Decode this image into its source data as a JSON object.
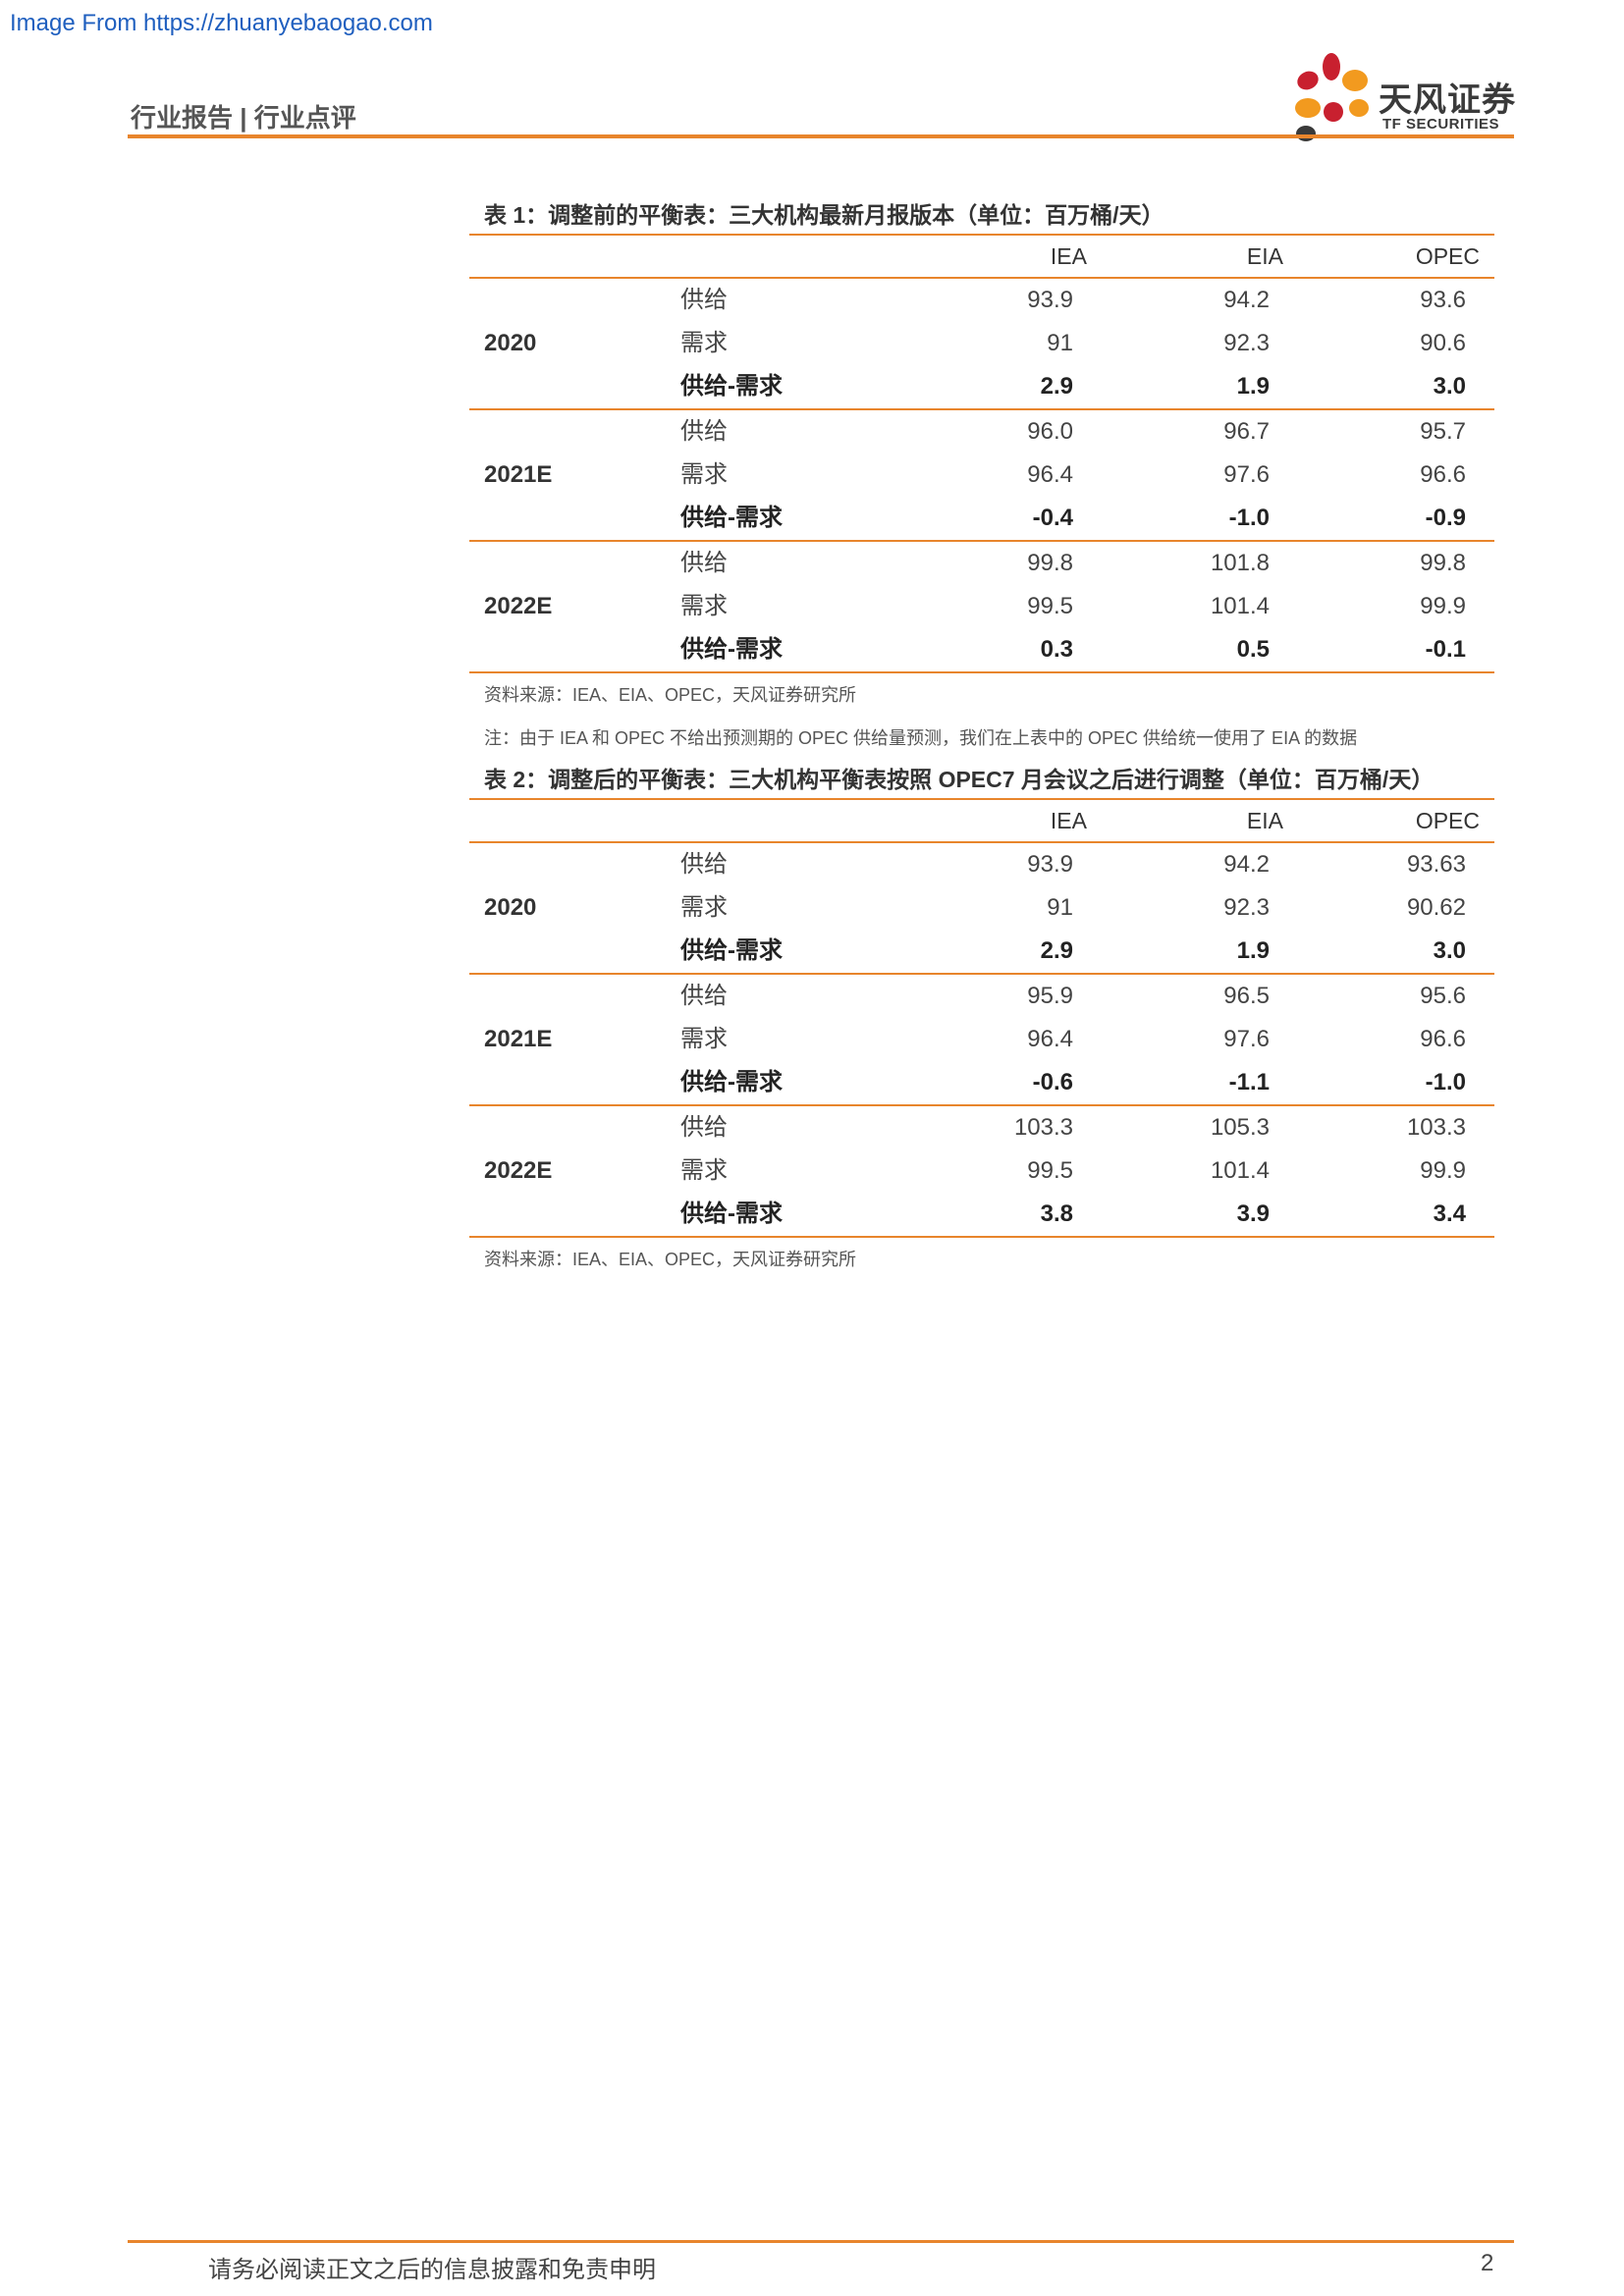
{
  "watermark": "Image From https://zhuanyebaogao.com",
  "header": {
    "title": "行业报告 | 行业点评",
    "logo_cn": "天风证券",
    "logo_en": "TF SECURITIES"
  },
  "table1": {
    "title": "表 1：调整前的平衡表：三大机构最新月报版本（单位：百万桶/天）",
    "columns": [
      "IEA",
      "EIA",
      "OPEC"
    ],
    "groups": [
      {
        "year": "2020",
        "rows": [
          {
            "label": "供给",
            "values": [
              "93.9",
              "94.2",
              "93.6"
            ]
          },
          {
            "label": "需求",
            "values": [
              "91",
              "92.3",
              "90.6"
            ]
          },
          {
            "label": "供给-需求",
            "values": [
              "2.9",
              "1.9",
              "3.0"
            ]
          }
        ]
      },
      {
        "year": "2021E",
        "rows": [
          {
            "label": "供给",
            "values": [
              "96.0",
              "96.7",
              "95.7"
            ]
          },
          {
            "label": "需求",
            "values": [
              "96.4",
              "97.6",
              "96.6"
            ]
          },
          {
            "label": "供给-需求",
            "values": [
              "-0.4",
              "-1.0",
              "-0.9"
            ]
          }
        ]
      },
      {
        "year": "2022E",
        "rows": [
          {
            "label": "供给",
            "values": [
              "99.8",
              "101.8",
              "99.8"
            ]
          },
          {
            "label": "需求",
            "values": [
              "99.5",
              "101.4",
              "99.9"
            ]
          },
          {
            "label": "供给-需求",
            "values": [
              "0.3",
              "0.5",
              "-0.1"
            ]
          }
        ]
      }
    ],
    "source": "资料来源：IEA、EIA、OPEC，天风证券研究所",
    "note": "注：由于 IEA 和 OPEC 不给出预测期的 OPEC 供给量预测，我们在上表中的 OPEC 供给统一使用了 EIA 的数据"
  },
  "table2": {
    "title": "表 2：调整后的平衡表：三大机构平衡表按照 OPEC7 月会议之后进行调整（单位：百万桶/天）",
    "columns": [
      "IEA",
      "EIA",
      "OPEC"
    ],
    "groups": [
      {
        "year": "2020",
        "rows": [
          {
            "label": "供给",
            "values": [
              "93.9",
              "94.2",
              "93.63"
            ]
          },
          {
            "label": "需求",
            "values": [
              "91",
              "92.3",
              "90.62"
            ]
          },
          {
            "label": "供给-需求",
            "values": [
              "2.9",
              "1.9",
              "3.0"
            ]
          }
        ]
      },
      {
        "year": "2021E",
        "rows": [
          {
            "label": "供给",
            "values": [
              "95.9",
              "96.5",
              "95.6"
            ]
          },
          {
            "label": "需求",
            "values": [
              "96.4",
              "97.6",
              "96.6"
            ]
          },
          {
            "label": "供给-需求",
            "values": [
              "-0.6",
              "-1.1",
              "-1.0"
            ]
          }
        ]
      },
      {
        "year": "2022E",
        "rows": [
          {
            "label": "供给",
            "values": [
              "103.3",
              "105.3",
              "103.3"
            ]
          },
          {
            "label": "需求",
            "values": [
              "99.5",
              "101.4",
              "99.9"
            ]
          },
          {
            "label": "供给-需求",
            "values": [
              "3.8",
              "3.9",
              "3.4"
            ]
          }
        ]
      }
    ],
    "source": "资料来源：IEA、EIA、OPEC，天风证券研究所"
  },
  "footer": {
    "disclaimer": "请务必阅读正文之后的信息披露和免责申明",
    "page_number": "2"
  },
  "colors": {
    "accent": "#e8852c",
    "watermark": "#1f5fbf",
    "logo_red": "#c8202f",
    "logo_orange": "#f29a1f",
    "logo_dark": "#3a3a3a"
  }
}
